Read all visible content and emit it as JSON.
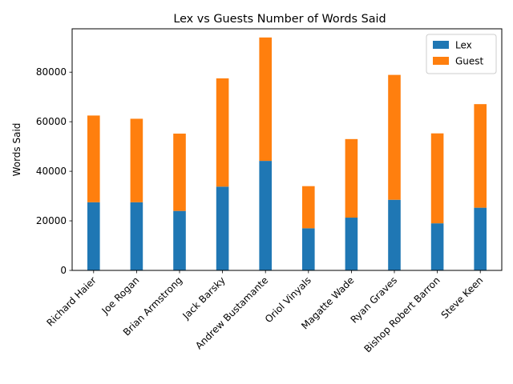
{
  "chart_data": {
    "type": "bar",
    "stacked": true,
    "title": "Lex vs Guests Number of Words Said",
    "xlabel": "",
    "ylabel": "Words Said",
    "ylim": [
      0,
      97500
    ],
    "yticks": [
      0,
      20000,
      40000,
      60000,
      80000
    ],
    "ytick_labels": [
      "0",
      "20000",
      "40000",
      "60000",
      "80000"
    ],
    "grid": false,
    "legend_position": "top-right",
    "categories": [
      "Richard Haier",
      "Joe Rogan",
      "Brian Armstrong",
      "Jack Barsky",
      "Andrew Bustamante",
      "Oriol Vinyals",
      "Magatte Wade",
      "Ryan Graves",
      "Bishop Robert Barron",
      "Steve Keen"
    ],
    "series": [
      {
        "name": "Lex",
        "color": "#1f77b4",
        "values": [
          27500,
          27500,
          24000,
          33800,
          44200,
          17000,
          21300,
          28500,
          19000,
          25300
        ]
      },
      {
        "name": "Guest",
        "color": "#ff7f0e",
        "values": [
          35000,
          33700,
          31200,
          43700,
          49800,
          17000,
          31700,
          50400,
          36300,
          41800
        ]
      }
    ]
  }
}
